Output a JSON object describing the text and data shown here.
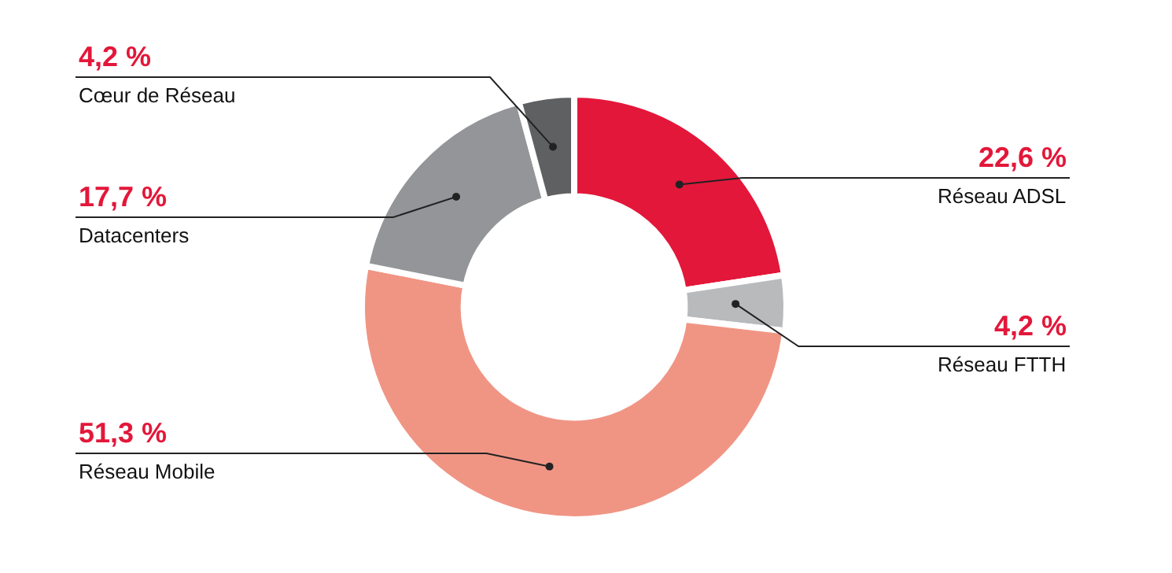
{
  "chart_data": {
    "type": "donut",
    "categories": [
      "Réseau ADSL",
      "Réseau FTTH",
      "Réseau Mobile",
      "Datacenters",
      "Cœur de Réseau"
    ],
    "values": [
      22.6,
      4.2,
      51.3,
      17.7,
      4.2
    ],
    "colors": [
      "#e3173a",
      "#b9babc",
      "#f09584",
      "#939598",
      "#5f6062"
    ],
    "value_labels": [
      "22,6 %",
      "4,2 %",
      "51,3 %",
      "17,7 %",
      "4,2 %"
    ],
    "legend": false
  }
}
